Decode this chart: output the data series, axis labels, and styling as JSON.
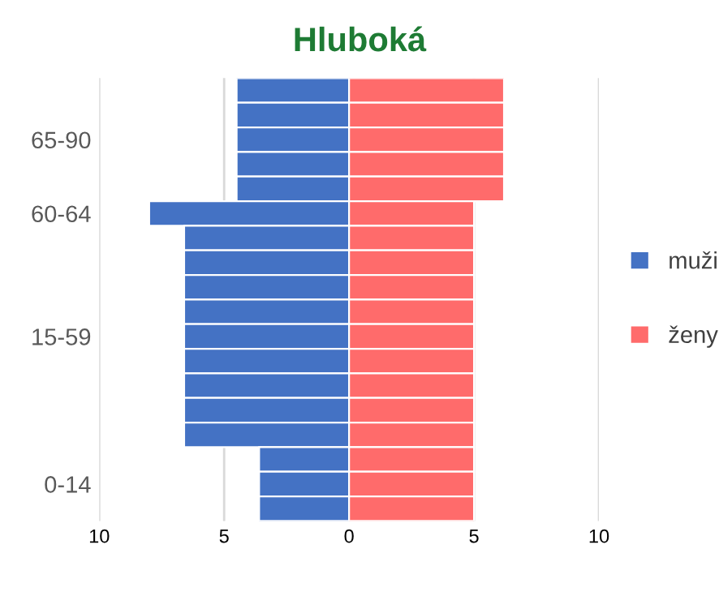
{
  "chart_data": {
    "type": "bar",
    "title": "Hluboká",
    "orientation": "horizontal",
    "stacked": true,
    "categories": [
      null,
      null,
      "65-90",
      null,
      null,
      "60-64",
      null,
      null,
      null,
      null,
      "15-59",
      null,
      null,
      null,
      null,
      null,
      "0-14",
      null
    ],
    "series": [
      {
        "name": "muži",
        "color": "#4472c4",
        "values": [
          -4.5,
          -4.5,
          -4.5,
          -4.5,
          -4.5,
          -8,
          -6.6,
          -6.6,
          -6.6,
          -6.6,
          -6.6,
          -6.6,
          -6.6,
          -6.6,
          -6.6,
          -3.6,
          -3.6,
          -3.6
        ]
      },
      {
        "name": "ženy",
        "color": "#ff6b6b",
        "values": [
          6.2,
          6.2,
          6.2,
          6.2,
          6.2,
          5,
          5,
          5,
          5,
          5,
          5,
          5,
          5,
          5,
          5,
          5,
          5,
          5
        ]
      }
    ],
    "xlim": [
      -10,
      10
    ],
    "xticks": [
      {
        "value": -10,
        "label": "10"
      },
      {
        "value": -5,
        "label": "5"
      },
      0,
      5,
      10
    ],
    "grid": "x",
    "legend": "right"
  }
}
